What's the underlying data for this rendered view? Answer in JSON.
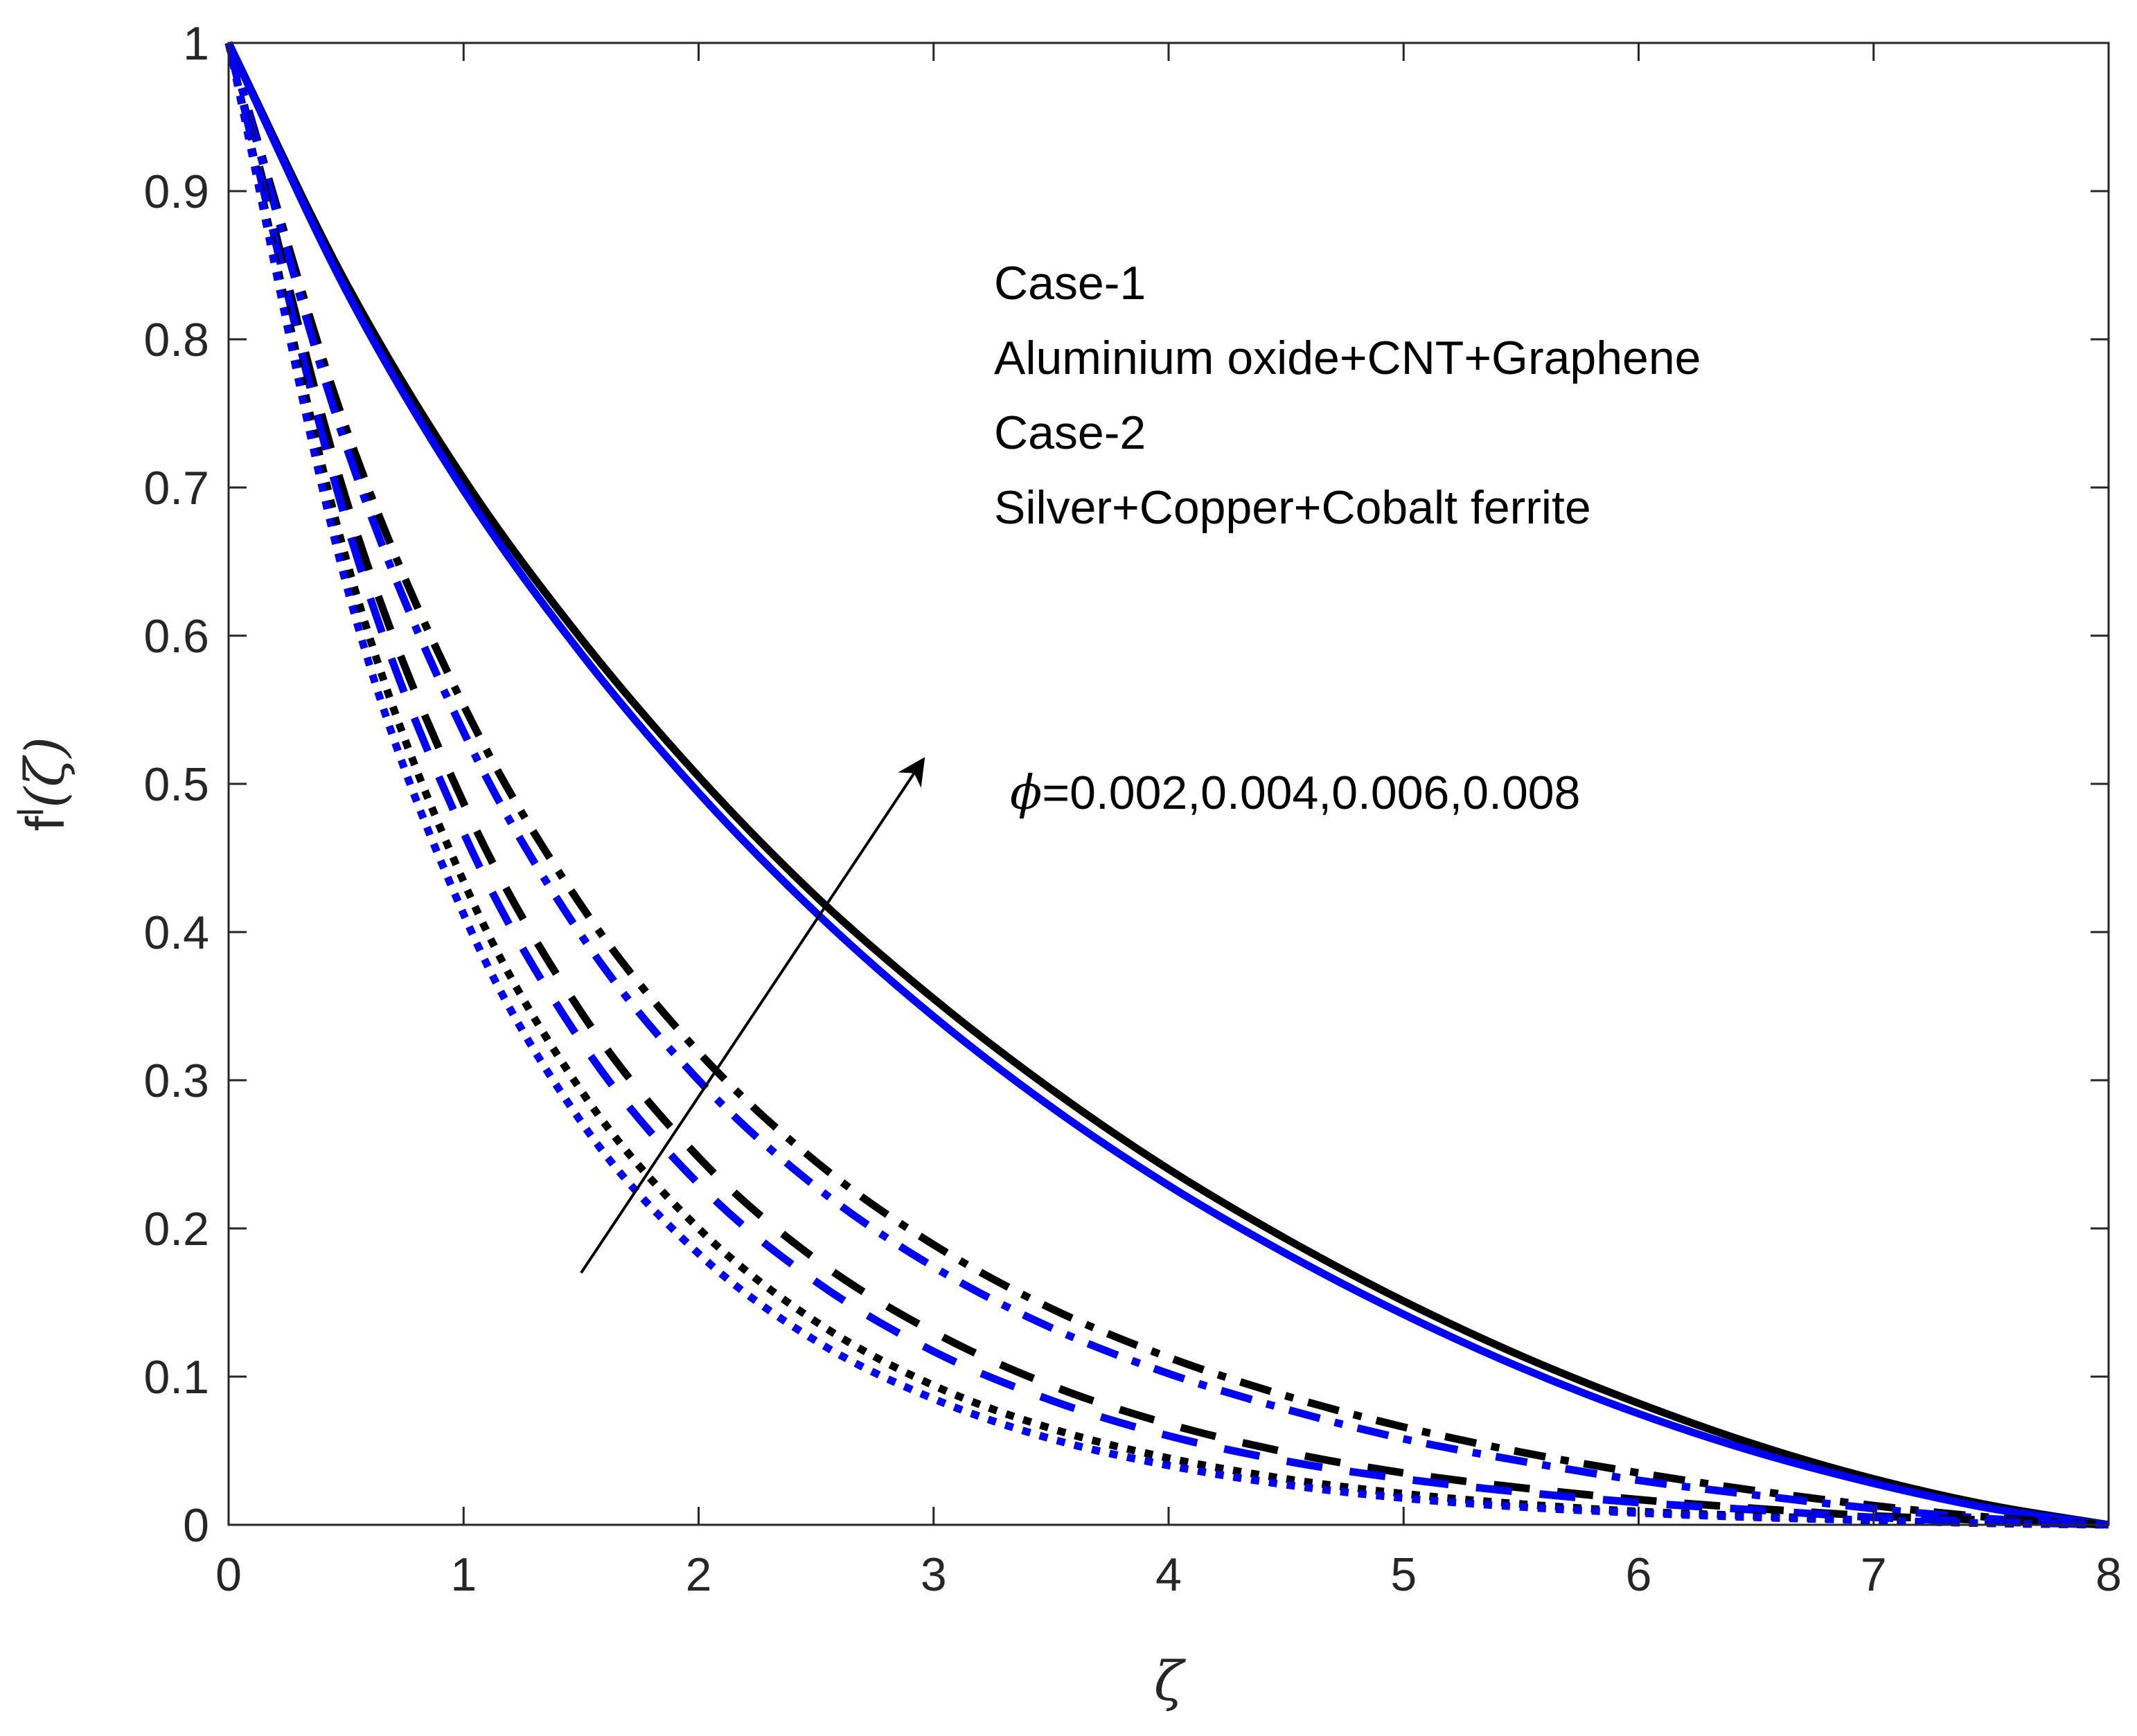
{
  "chart_data": {
    "type": "line",
    "title": "",
    "xlabel": "ζ",
    "ylabel": "f",
    "ylabel_superscript": "l",
    "ylabel_argument": "(ζ)",
    "xlim": [
      0,
      8
    ],
    "ylim": [
      0,
      1
    ],
    "xticks": [
      0,
      1,
      2,
      3,
      4,
      5,
      6,
      7,
      8
    ],
    "yticks": [
      0,
      0.1,
      0.2,
      0.3,
      0.4,
      0.5,
      0.6,
      0.7,
      0.8,
      0.9,
      1
    ],
    "xtick_labels": [
      "0",
      "1",
      "2",
      "3",
      "4",
      "5",
      "6",
      "7",
      "8"
    ],
    "ytick_labels": [
      "0",
      "0.1",
      "0.2",
      "0.3",
      "0.4",
      "0.5",
      "0.6",
      "0.7",
      "0.8",
      "0.9",
      "1"
    ],
    "grid": false,
    "x": [
      0,
      0.5,
      1,
      1.5,
      2,
      2.5,
      3,
      3.5,
      4,
      4.5,
      5,
      5.5,
      6,
      6.5,
      7,
      7.5,
      8
    ],
    "series": [
      {
        "name": "Case-1, φ=0.008",
        "case": 1,
        "color": "#000000",
        "dash": "solid",
        "values": [
          1,
          0.838,
          0.706,
          0.598,
          0.505,
          0.424,
          0.355,
          0.294,
          0.24,
          0.193,
          0.151,
          0.114,
          0.082,
          0.054,
          0.031,
          0.013,
          0
        ]
      },
      {
        "name": "Case-2, φ=0.008",
        "case": 2,
        "color": "#0000ff",
        "dash": "solid",
        "values": [
          1,
          0.833,
          0.698,
          0.588,
          0.494,
          0.413,
          0.343,
          0.282,
          0.229,
          0.183,
          0.142,
          0.106,
          0.075,
          0.049,
          0.028,
          0.011,
          0
        ]
      },
      {
        "name": "Case-1, φ=0.006",
        "case": 1,
        "color": "#000000",
        "dash": "dashdot",
        "values": [
          1,
          0.74,
          0.553,
          0.418,
          0.319,
          0.245,
          0.189,
          0.146,
          0.113,
          0.087,
          0.066,
          0.049,
          0.035,
          0.023,
          0.013,
          0.005,
          0
        ]
      },
      {
        "name": "Case-2, φ=0.006",
        "case": 2,
        "color": "#0000ff",
        "dash": "dashdot",
        "values": [
          1,
          0.728,
          0.535,
          0.398,
          0.3,
          0.228,
          0.174,
          0.133,
          0.102,
          0.078,
          0.058,
          0.043,
          0.03,
          0.02,
          0.011,
          0.004,
          0
        ]
      },
      {
        "name": "Case-1, φ=0.004",
        "case": 1,
        "color": "#000000",
        "dash": "dash",
        "values": [
          1,
          0.692,
          0.487,
          0.346,
          0.248,
          0.179,
          0.13,
          0.094,
          0.068,
          0.049,
          0.035,
          0.025,
          0.017,
          0.011,
          0.006,
          0.003,
          0
        ]
      },
      {
        "name": "Case-2, φ=0.004",
        "case": 2,
        "color": "#0000ff",
        "dash": "dash",
        "values": [
          1,
          0.677,
          0.467,
          0.326,
          0.23,
          0.164,
          0.117,
          0.084,
          0.06,
          0.043,
          0.031,
          0.022,
          0.015,
          0.01,
          0.005,
          0.002,
          0
        ]
      },
      {
        "name": "Case-1, φ=0.002",
        "case": 1,
        "color": "#000000",
        "dash": "dot",
        "values": [
          1,
          0.652,
          0.434,
          0.293,
          0.2,
          0.137,
          0.094,
          0.065,
          0.045,
          0.031,
          0.021,
          0.014,
          0.009,
          0.006,
          0.003,
          0.001,
          0
        ]
      },
      {
        "name": "Case-2, φ=0.002",
        "case": 2,
        "color": "#0000ff",
        "dash": "dot",
        "values": [
          1,
          0.635,
          0.412,
          0.272,
          0.183,
          0.124,
          0.085,
          0.058,
          0.04,
          0.027,
          0.018,
          0.012,
          0.008,
          0.005,
          0.003,
          0.001,
          0
        ]
      }
    ],
    "annotations": {
      "legend_lines": [
        "Case-1",
        "Aluminium oxide+CNT+Graphene",
        "Case-2",
        "Silver+Copper+Cobalt ferrite"
      ],
      "phi_symbol": "ϕ",
      "phi_label": "=0.002,0.004,0.006,0.008",
      "arrow": {
        "from": [
          1.5,
          0.17
        ],
        "to": [
          2.95,
          0.515
        ]
      }
    }
  }
}
